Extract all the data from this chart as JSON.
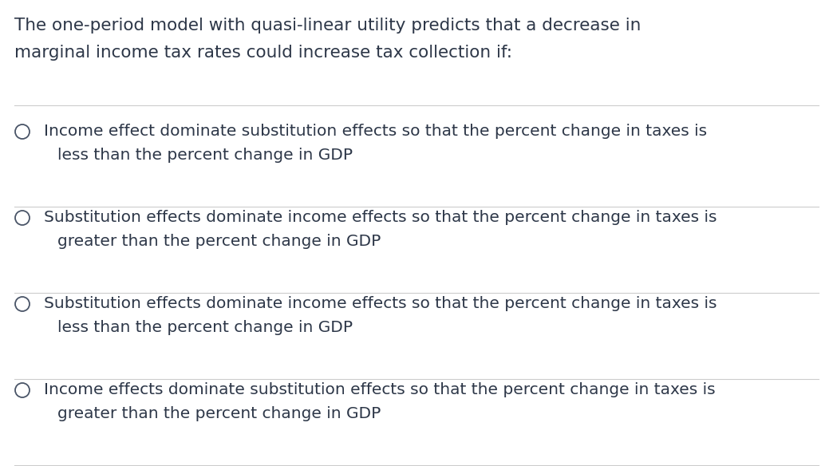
{
  "background_color": "#ffffff",
  "title_lines": [
    "The one-period model with quasi-linear utility predicts that a decrease in",
    "marginal income tax rates could increase tax collection if:"
  ],
  "options": [
    [
      "Income effect dominate substitution effects so that the percent change in taxes is",
      "less than the percent change in GDP"
    ],
    [
      "Substitution effects dominate income effects so that the percent change in taxes is",
      "greater than the percent change in GDP"
    ],
    [
      "Substitution effects dominate income effects so that the percent change in taxes is",
      "less than the percent change in GDP"
    ],
    [
      "Income effects dominate substitution effects so that the percent change in taxes is",
      "greater than the percent change in GDP"
    ]
  ],
  "text_color": "#2d3748",
  "title_fontsize": 15.5,
  "option_fontsize": 14.5,
  "circle_color": "#4a5568",
  "line_color": "#cccccc",
  "line_width": 0.8,
  "fig_width": 10.44,
  "fig_height": 5.84,
  "dpi": 100
}
